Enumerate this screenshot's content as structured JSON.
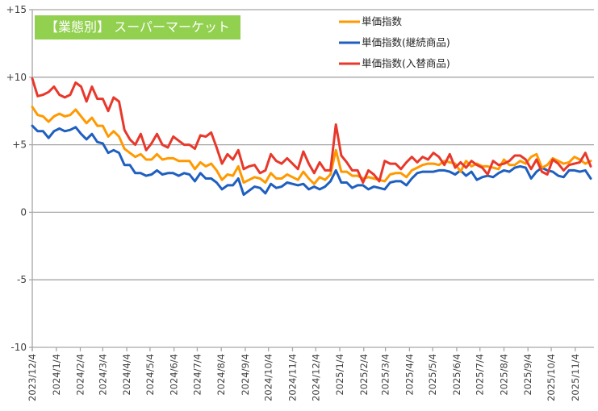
{
  "chart_data": {
    "type": "line",
    "title": "【業態別】 スーパーマーケット",
    "xlabel": "",
    "ylabel": "",
    "ylim": [
      -10,
      15
    ],
    "yticks": [
      15,
      10,
      5,
      0,
      -5,
      -10
    ],
    "ytick_labels": [
      "+15",
      "+10",
      "+5",
      "0",
      "-5",
      "-10"
    ],
    "grid": true,
    "legend_position": "top-right",
    "x_tick_labels": [
      "2023/12/4",
      "2024/1/4",
      "2024/2/4",
      "2024/3/4",
      "2024/4/4",
      "2024/5/4",
      "2024/6/4",
      "2024/7/4",
      "2024/8/4",
      "2024/9/4",
      "2024/10/4",
      "2024/11/4",
      "2024/12/4",
      "2025/1/4",
      "2025/2/4",
      "2025/3/4",
      "2025/4/4",
      "2025/5/4",
      "2025/6/4",
      "2025/7/4",
      "2025/8/4",
      "2025/9/4",
      "2025/10/4",
      "2025/11/4"
    ],
    "x_start": "2023/12/4",
    "x_interval": "weekly",
    "series": [
      {
        "name": "単価指数",
        "color": "#ff9900",
        "values": [
          7.8,
          7.2,
          7.1,
          6.7,
          7.1,
          7.3,
          7.1,
          7.2,
          7.6,
          7.1,
          6.6,
          7.0,
          6.4,
          6.4,
          5.6,
          6.0,
          5.6,
          4.7,
          4.4,
          4.1,
          4.3,
          3.9,
          3.9,
          4.3,
          3.9,
          4.0,
          4.0,
          3.8,
          3.8,
          3.8,
          3.2,
          3.7,
          3.4,
          3.6,
          3.1,
          2.4,
          2.8,
          2.7,
          3.4,
          2.2,
          2.4,
          2.6,
          2.5,
          2.2,
          2.9,
          2.5,
          2.5,
          2.8,
          2.6,
          2.4,
          3.0,
          2.5,
          2.1,
          2.6,
          2.4,
          2.8,
          4.6,
          3.0,
          3.0,
          2.7,
          2.7,
          2.5,
          2.6,
          2.5,
          2.4,
          2.3,
          2.8,
          2.9,
          2.9,
          2.6,
          3.1,
          3.3,
          3.5,
          3.6,
          3.6,
          3.5,
          3.8,
          3.7,
          3.6,
          3.0,
          3.8,
          3.4,
          3.6,
          3.4,
          3.4,
          3.3,
          3.2,
          3.9,
          3.5,
          3.5,
          3.8,
          3.6,
          4.1,
          4.3,
          3.3,
          3.5,
          4.0,
          3.8,
          3.6,
          3.7,
          4.1,
          3.9,
          3.6,
          3.8
        ]
      },
      {
        "name": "単価指数(継続商品)",
        "color": "#1f5fbf",
        "values": [
          6.4,
          6.0,
          6.0,
          5.5,
          6.0,
          6.2,
          6.0,
          6.1,
          6.3,
          5.8,
          5.4,
          5.8,
          5.2,
          5.1,
          4.4,
          4.6,
          4.4,
          3.5,
          3.5,
          2.9,
          2.9,
          2.7,
          2.8,
          3.1,
          2.8,
          2.9,
          2.9,
          2.7,
          2.9,
          2.8,
          2.3,
          2.9,
          2.5,
          2.5,
          2.2,
          1.7,
          2.0,
          2.0,
          2.5,
          1.3,
          1.6,
          1.9,
          1.8,
          1.4,
          2.1,
          1.8,
          1.9,
          2.2,
          2.1,
          2.0,
          2.1,
          1.7,
          1.9,
          1.7,
          1.9,
          2.3,
          3.1,
          2.2,
          2.2,
          1.8,
          2.0,
          2.0,
          1.7,
          1.9,
          1.8,
          1.7,
          2.2,
          2.3,
          2.3,
          2.0,
          2.5,
          2.9,
          3.0,
          3.0,
          3.0,
          3.1,
          3.1,
          3.0,
          2.8,
          3.1,
          2.7,
          3.0,
          2.4,
          2.6,
          2.7,
          2.6,
          2.9,
          3.1,
          3.0,
          3.3,
          3.4,
          3.3,
          2.5,
          3.0,
          3.3,
          3.1,
          3.0,
          2.7,
          2.6,
          3.1,
          3.1,
          3.0,
          3.1,
          2.5
        ]
      },
      {
        "name": "単価指数(入替商品)",
        "color": "#e8382b",
        "values": [
          9.9,
          8.6,
          8.7,
          8.9,
          9.3,
          8.7,
          8.5,
          8.7,
          9.6,
          9.3,
          8.2,
          9.3,
          8.4,
          8.4,
          7.5,
          8.5,
          8.2,
          6.1,
          5.4,
          5.0,
          5.8,
          4.6,
          5.1,
          5.8,
          5.0,
          4.8,
          5.6,
          5.3,
          5.0,
          5.0,
          4.7,
          5.7,
          5.6,
          5.9,
          4.8,
          3.6,
          4.3,
          3.9,
          4.6,
          3.2,
          3.4,
          3.5,
          2.9,
          3.1,
          4.3,
          3.8,
          3.6,
          4.0,
          3.6,
          3.2,
          4.5,
          3.6,
          2.9,
          3.7,
          3.1,
          3.1,
          6.5,
          4.2,
          3.7,
          3.1,
          3.1,
          2.2,
          3.1,
          2.8,
          2.3,
          3.8,
          3.6,
          3.6,
          3.2,
          3.7,
          4.1,
          3.7,
          4.1,
          3.9,
          4.4,
          4.1,
          3.5,
          4.3,
          3.3,
          3.7,
          3.3,
          3.8,
          3.5,
          3.3,
          2.8,
          3.8,
          3.5,
          3.6,
          3.8,
          4.2,
          4.2,
          3.9,
          3.2,
          3.9,
          3.0,
          2.8,
          3.9,
          3.6,
          3.1,
          3.5,
          3.6,
          3.7,
          4.4,
          3.4
        ]
      }
    ]
  }
}
